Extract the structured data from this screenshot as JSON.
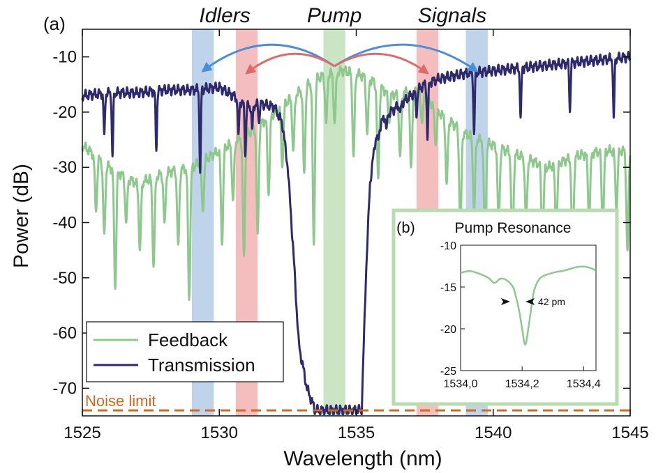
{
  "chart_data": [
    {
      "type": "line",
      "panel_label": "(a)",
      "xlabel": "Wavelength (nm)",
      "ylabel": "Power (dB)",
      "xlim": [
        1525,
        1545
      ],
      "ylim": [
        -75,
        -5
      ],
      "xticks": [
        1525,
        1530,
        1535,
        1540,
        1545
      ],
      "yticks": [
        -70,
        -60,
        -50,
        -40,
        -30,
        -20,
        -10
      ],
      "grid": false,
      "legend_position": "bottom-left",
      "band_labels": {
        "idlers": "Idlers",
        "pump": "Pump",
        "signals": "Signals"
      },
      "bands": [
        {
          "group": "idlers",
          "from": 1529.0,
          "to": 1529.8,
          "color": "#a9c6e4"
        },
        {
          "group": "idlers",
          "from": 1530.6,
          "to": 1531.4,
          "color": "#f2a8a8"
        },
        {
          "group": "pump",
          "from": 1533.8,
          "to": 1534.6,
          "color": "#b8dcb0"
        },
        {
          "group": "signals",
          "from": 1537.2,
          "to": 1538.0,
          "color": "#f2a8a8"
        },
        {
          "group": "signals",
          "from": 1539.0,
          "to": 1539.8,
          "color": "#a9c6e4"
        }
      ],
      "arrows": [
        {
          "from": 1534.2,
          "to": 1529.4,
          "color": "#4a90d9"
        },
        {
          "from": 1534.2,
          "to": 1539.4,
          "color": "#4a90d9"
        },
        {
          "from": 1534.2,
          "to": 1531.0,
          "color": "#e06a6a"
        },
        {
          "from": 1534.2,
          "to": 1537.6,
          "color": "#e06a6a"
        }
      ],
      "noise_limit": {
        "label": "Noise limit",
        "value": -74,
        "color": "#d2691e"
      },
      "series": [
        {
          "name": "Feedback",
          "color": "#8dc88d",
          "baseline": [
            [
              1525,
              -26
            ],
            [
              1526,
              -30
            ],
            [
              1527,
              -33
            ],
            [
              1528,
              -31
            ],
            [
              1529,
              -30
            ],
            [
              1530,
              -27
            ],
            [
              1531,
              -24
            ],
            [
              1531.8,
              -21
            ],
            [
              1532.5,
              -18
            ],
            [
              1533,
              -16
            ],
            [
              1533.5,
              -14
            ],
            [
              1534,
              -13
            ],
            [
              1534.5,
              -12.5
            ],
            [
              1535,
              -13
            ],
            [
              1535.5,
              -14
            ],
            [
              1536,
              -16
            ],
            [
              1536.5,
              -17
            ],
            [
              1537,
              -16
            ],
            [
              1537.5,
              -17
            ],
            [
              1538,
              -20
            ],
            [
              1539,
              -24
            ],
            [
              1540,
              -26
            ],
            [
              1541,
              -28
            ],
            [
              1542,
              -30
            ],
            [
              1543,
              -28
            ],
            [
              1544,
              -27
            ],
            [
              1545,
              -27
            ]
          ],
          "dips": [
            [
              1525.5,
              -38
            ],
            [
              1525.8,
              -42
            ],
            [
              1526.2,
              -52
            ],
            [
              1526.6,
              -40
            ],
            [
              1527.1,
              -45
            ],
            [
              1527.6,
              -48
            ],
            [
              1528.0,
              -40
            ],
            [
              1528.5,
              -44
            ],
            [
              1528.9,
              -54
            ],
            [
              1529.4,
              -38
            ],
            [
              1530.1,
              -44
            ],
            [
              1530.5,
              -36
            ],
            [
              1530.9,
              -46
            ],
            [
              1531.4,
              -42
            ],
            [
              1531.8,
              -35
            ],
            [
              1532.3,
              -30
            ],
            [
              1532.7,
              -27
            ],
            [
              1533.1,
              -31
            ],
            [
              1533.45,
              -44
            ],
            [
              1533.9,
              -22
            ],
            [
              1534.21,
              -22
            ],
            [
              1534.9,
              -28
            ],
            [
              1535.4,
              -24
            ],
            [
              1535.8,
              -32
            ],
            [
              1536.2,
              -22
            ],
            [
              1536.6,
              -28
            ],
            [
              1537.0,
              -30
            ],
            [
              1537.4,
              -22
            ],
            [
              1537.9,
              -26
            ],
            [
              1538.3,
              -33
            ],
            [
              1538.8,
              -42
            ],
            [
              1539.3,
              -38
            ],
            [
              1539.7,
              -44
            ],
            [
              1540.2,
              -40
            ],
            [
              1540.7,
              -46
            ],
            [
              1541.2,
              -40
            ],
            [
              1541.8,
              -44
            ],
            [
              1542.3,
              -42
            ],
            [
              1542.9,
              -46
            ],
            [
              1543.5,
              -40
            ],
            [
              1544.0,
              -42
            ],
            [
              1544.5,
              -38
            ],
            [
              1544.9,
              -45
            ]
          ]
        },
        {
          "name": "Transmission",
          "color": "#2e2a6b",
          "points": [
            [
              1525,
              -17
            ],
            [
              1526,
              -16.5
            ],
            [
              1527,
              -16.5
            ],
            [
              1528,
              -16
            ],
            [
              1529,
              -16
            ],
            [
              1530,
              -15.5
            ],
            [
              1530.5,
              -17
            ],
            [
              1531,
              -19
            ],
            [
              1531.5,
              -18.5
            ],
            [
              1532,
              -19
            ],
            [
              1532.3,
              -22
            ],
            [
              1532.5,
              -30
            ],
            [
              1532.7,
              -45
            ],
            [
              1532.9,
              -62
            ],
            [
              1533.2,
              -70
            ],
            [
              1533.5,
              -74
            ],
            [
              1534,
              -74
            ],
            [
              1534.5,
              -74
            ],
            [
              1535,
              -74
            ],
            [
              1535.2,
              -74
            ],
            [
              1535.35,
              -50
            ],
            [
              1535.5,
              -33
            ],
            [
              1535.7,
              -25
            ],
            [
              1536,
              -21
            ],
            [
              1536.5,
              -19
            ],
            [
              1537,
              -17
            ],
            [
              1537.5,
              -15
            ],
            [
              1538,
              -14
            ],
            [
              1539,
              -13
            ],
            [
              1540,
              -12.5
            ],
            [
              1541,
              -12
            ],
            [
              1542,
              -11.5
            ],
            [
              1543,
              -11
            ],
            [
              1544,
              -10.5
            ],
            [
              1545,
              -10
            ]
          ],
          "dips": [
            [
              1525.8,
              -24
            ],
            [
              1526.1,
              -28
            ],
            [
              1527.7,
              -27
            ],
            [
              1529.3,
              -31
            ],
            [
              1530.7,
              -24
            ],
            [
              1530.95,
              -28
            ],
            [
              1531.2,
              -23
            ],
            [
              1531.45,
              -22
            ],
            [
              1535.8,
              -25
            ],
            [
              1536.1,
              -23
            ],
            [
              1536.6,
              -20
            ],
            [
              1537.2,
              -21
            ],
            [
              1537.6,
              -25
            ],
            [
              1539.3,
              -24
            ],
            [
              1541.0,
              -21
            ],
            [
              1542.8,
              -20
            ],
            [
              1544.4,
              -21
            ]
          ]
        }
      ]
    },
    {
      "type": "line",
      "panel_label": "(b)",
      "title": "Pump Resonance",
      "xlim": [
        1534.0,
        1534.44
      ],
      "ylim": [
        -25,
        -10
      ],
      "xticks": [
        "1534,0",
        "1534,2",
        "1534,4"
      ],
      "xtick_values": [
        1534.0,
        1534.2,
        1534.4
      ],
      "yticks": [
        -25,
        -20,
        -15,
        -10
      ],
      "annotation": "42 pm",
      "series": [
        {
          "name": "Feedback",
          "color": "#8dc88d",
          "points": [
            [
              1534.0,
              -13.3
            ],
            [
              1534.03,
              -13.1
            ],
            [
              1534.06,
              -13.4
            ],
            [
              1534.09,
              -13.9
            ],
            [
              1534.11,
              -14.5
            ],
            [
              1534.13,
              -14.0
            ],
            [
              1534.15,
              -14.2
            ],
            [
              1534.17,
              -15.0
            ],
            [
              1534.18,
              -16.2
            ],
            [
              1534.19,
              -17.8
            ],
            [
              1534.2,
              -20.0
            ],
            [
              1534.21,
              -21.9
            ],
            [
              1534.22,
              -20.0
            ],
            [
              1534.23,
              -17.4
            ],
            [
              1534.24,
              -15.3
            ],
            [
              1534.26,
              -13.9
            ],
            [
              1534.3,
              -13.3
            ],
            [
              1534.34,
              -13.0
            ],
            [
              1534.38,
              -12.6
            ],
            [
              1534.41,
              -12.6
            ],
            [
              1534.44,
              -13.0
            ]
          ]
        }
      ]
    }
  ]
}
